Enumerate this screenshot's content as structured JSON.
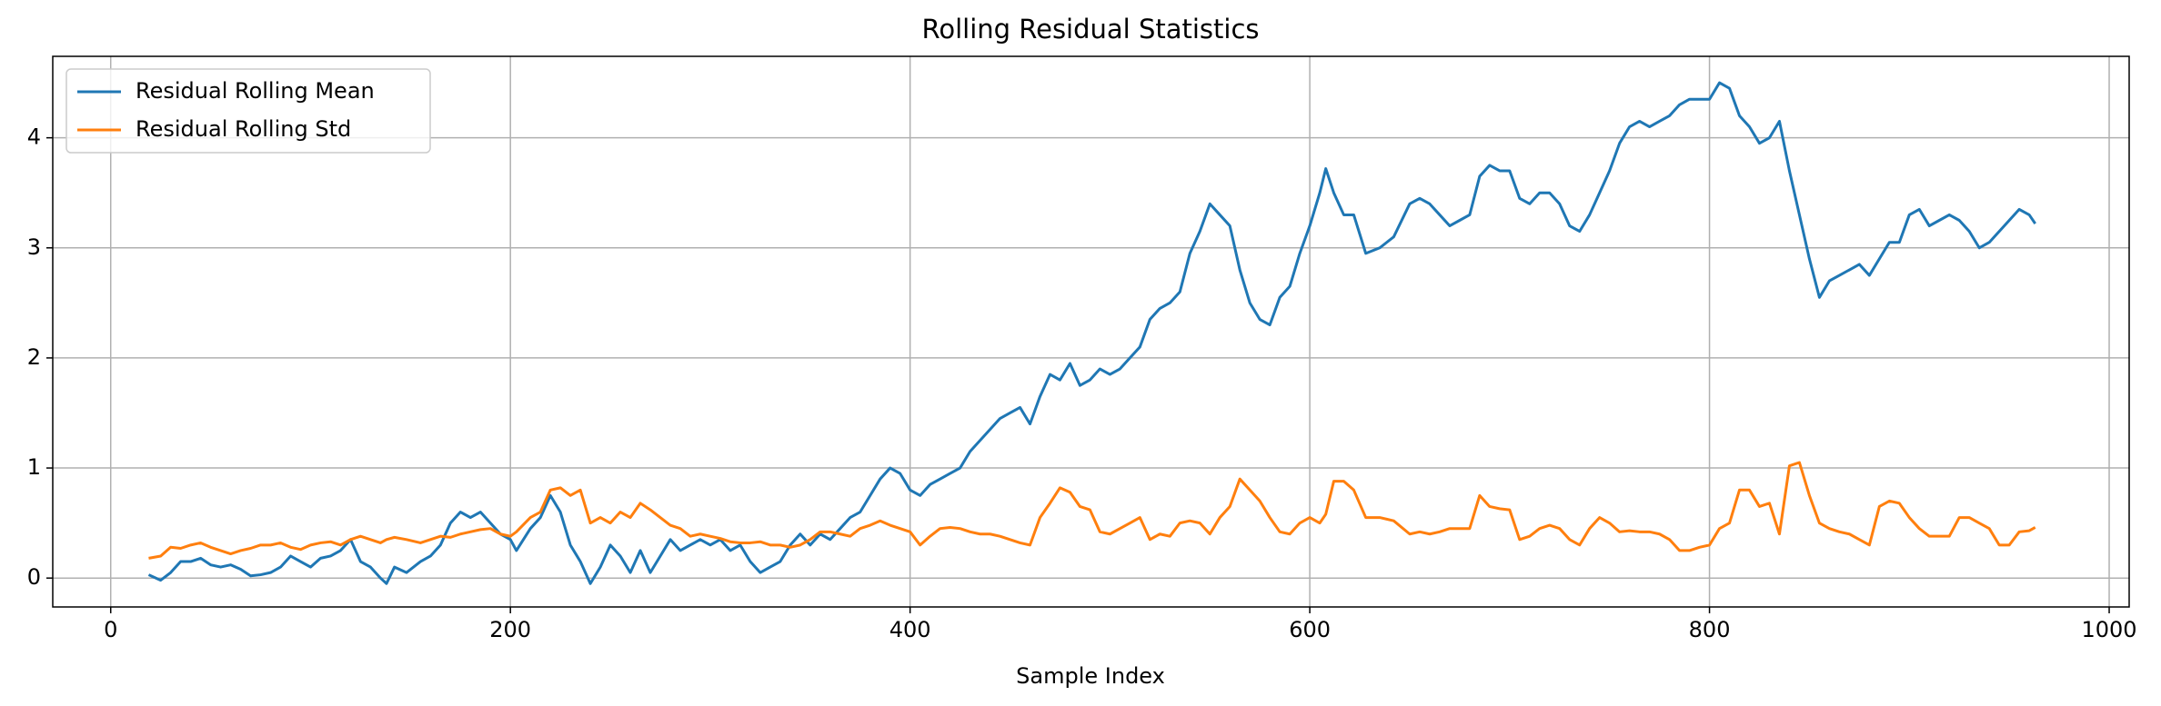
{
  "chart_data": {
    "type": "line",
    "title": "Rolling Residual Statistics",
    "x_label": "Sample Index",
    "x": [
      19,
      25,
      30,
      35,
      40,
      45,
      50,
      55,
      60,
      65,
      70,
      75,
      80,
      85,
      90,
      95,
      100,
      105,
      110,
      115,
      120,
      125,
      130,
      135,
      138,
      142,
      148,
      155,
      160,
      165,
      170,
      175,
      180,
      185,
      190,
      195,
      200,
      203,
      210,
      215,
      220,
      225,
      230,
      235,
      240,
      245,
      250,
      255,
      260,
      265,
      270,
      275,
      280,
      285,
      290,
      295,
      300,
      305,
      310,
      315,
      320,
      325,
      330,
      335,
      340,
      345,
      350,
      355,
      360,
      365,
      370,
      375,
      380,
      385,
      390,
      395,
      400,
      405,
      410,
      415,
      420,
      425,
      430,
      435,
      440,
      445,
      450,
      455,
      460,
      465,
      470,
      475,
      480,
      485,
      490,
      495,
      500,
      505,
      510,
      515,
      520,
      525,
      530,
      535,
      540,
      545,
      550,
      555,
      560,
      565,
      570,
      575,
      580,
      585,
      590,
      595,
      600,
      605,
      608,
      612,
      617,
      622,
      628,
      635,
      642,
      650,
      655,
      660,
      665,
      670,
      675,
      680,
      685,
      690,
      695,
      700,
      705,
      710,
      715,
      720,
      725,
      730,
      735,
      740,
      745,
      750,
      755,
      760,
      765,
      770,
      775,
      780,
      785,
      790,
      795,
      800,
      805,
      810,
      815,
      820,
      825,
      830,
      835,
      840,
      845,
      850,
      855,
      860,
      865,
      870,
      875,
      880,
      885,
      890,
      895,
      900,
      905,
      910,
      915,
      920,
      925,
      930,
      935,
      940,
      945,
      950,
      955,
      960,
      963
    ],
    "series": [
      {
        "name": "Residual Rolling Mean",
        "color": "#1f77b4",
        "values": [
          0.03,
          -0.02,
          0.05,
          0.15,
          0.15,
          0.18,
          0.12,
          0.1,
          0.12,
          0.08,
          0.02,
          0.03,
          0.05,
          0.1,
          0.2,
          0.15,
          0.1,
          0.18,
          0.2,
          0.25,
          0.35,
          0.15,
          0.1,
          0.0,
          -0.05,
          0.1,
          0.05,
          0.15,
          0.2,
          0.3,
          0.5,
          0.6,
          0.55,
          0.6,
          0.5,
          0.4,
          0.35,
          0.25,
          0.45,
          0.55,
          0.75,
          0.6,
          0.3,
          0.15,
          -0.05,
          0.1,
          0.3,
          0.2,
          0.05,
          0.25,
          0.05,
          0.2,
          0.35,
          0.25,
          0.3,
          0.35,
          0.3,
          0.35,
          0.25,
          0.3,
          0.15,
          0.05,
          0.1,
          0.15,
          0.3,
          0.4,
          0.3,
          0.4,
          0.35,
          0.45,
          0.55,
          0.6,
          0.75,
          0.9,
          1.0,
          0.95,
          0.8,
          0.75,
          0.85,
          0.9,
          0.95,
          1.0,
          1.15,
          1.25,
          1.35,
          1.45,
          1.5,
          1.55,
          1.4,
          1.65,
          1.85,
          1.8,
          1.95,
          1.75,
          1.8,
          1.9,
          1.85,
          1.9,
          2.0,
          2.1,
          2.35,
          2.45,
          2.5,
          2.6,
          2.95,
          3.15,
          3.4,
          3.3,
          3.2,
          2.8,
          2.5,
          2.35,
          2.3,
          2.55,
          2.65,
          2.95,
          3.2,
          3.5,
          3.72,
          3.5,
          3.3,
          3.3,
          2.95,
          3.0,
          3.1,
          3.4,
          3.45,
          3.4,
          3.3,
          3.2,
          3.25,
          3.3,
          3.65,
          3.75,
          3.7,
          3.7,
          3.45,
          3.4,
          3.5,
          3.5,
          3.4,
          3.2,
          3.15,
          3.3,
          3.5,
          3.7,
          3.95,
          4.1,
          4.15,
          4.1,
          4.15,
          4.2,
          4.3,
          4.35,
          4.35,
          4.35,
          4.5,
          4.45,
          4.2,
          4.1,
          3.95,
          4.0,
          4.15,
          3.7,
          3.3,
          2.9,
          2.55,
          2.7,
          2.75,
          2.8,
          2.85,
          2.75,
          2.9,
          3.05,
          3.05,
          3.3,
          3.35,
          3.2,
          3.25,
          3.3,
          3.25,
          3.15,
          3.0,
          3.05,
          3.15,
          3.25,
          3.35,
          3.3,
          3.22
        ]
      },
      {
        "name": "Residual Rolling Std",
        "color": "#ff7f0e",
        "values": [
          0.18,
          0.2,
          0.28,
          0.27,
          0.3,
          0.32,
          0.28,
          0.25,
          0.22,
          0.25,
          0.27,
          0.3,
          0.3,
          0.32,
          0.28,
          0.26,
          0.3,
          0.32,
          0.33,
          0.3,
          0.35,
          0.38,
          0.35,
          0.32,
          0.35,
          0.37,
          0.35,
          0.32,
          0.35,
          0.38,
          0.37,
          0.4,
          0.42,
          0.44,
          0.45,
          0.4,
          0.38,
          0.42,
          0.55,
          0.6,
          0.8,
          0.82,
          0.75,
          0.8,
          0.5,
          0.55,
          0.5,
          0.6,
          0.55,
          0.68,
          0.62,
          0.55,
          0.48,
          0.45,
          0.38,
          0.4,
          0.38,
          0.36,
          0.33,
          0.32,
          0.32,
          0.33,
          0.3,
          0.3,
          0.28,
          0.3,
          0.35,
          0.42,
          0.42,
          0.4,
          0.38,
          0.45,
          0.48,
          0.52,
          0.48,
          0.45,
          0.42,
          0.3,
          0.38,
          0.45,
          0.46,
          0.45,
          0.42,
          0.4,
          0.4,
          0.38,
          0.35,
          0.32,
          0.3,
          0.55,
          0.68,
          0.82,
          0.78,
          0.65,
          0.62,
          0.42,
          0.4,
          0.45,
          0.5,
          0.55,
          0.35,
          0.4,
          0.38,
          0.5,
          0.52,
          0.5,
          0.4,
          0.55,
          0.65,
          0.9,
          0.8,
          0.7,
          0.55,
          0.42,
          0.4,
          0.5,
          0.55,
          0.5,
          0.58,
          0.88,
          0.88,
          0.8,
          0.55,
          0.55,
          0.52,
          0.4,
          0.42,
          0.4,
          0.42,
          0.45,
          0.45,
          0.45,
          0.75,
          0.65,
          0.63,
          0.62,
          0.35,
          0.38,
          0.45,
          0.48,
          0.45,
          0.35,
          0.3,
          0.45,
          0.55,
          0.5,
          0.42,
          0.43,
          0.42,
          0.42,
          0.4,
          0.35,
          0.25,
          0.25,
          0.28,
          0.3,
          0.45,
          0.5,
          0.8,
          0.8,
          0.65,
          0.68,
          0.4,
          1.02,
          1.05,
          0.75,
          0.5,
          0.45,
          0.42,
          0.4,
          0.35,
          0.3,
          0.65,
          0.7,
          0.68,
          0.55,
          0.45,
          0.38,
          0.38,
          0.38,
          0.55,
          0.55,
          0.5,
          0.45,
          0.3,
          0.3,
          0.42,
          0.43,
          0.46
        ]
      }
    ],
    "xlim": [
      -29,
      1010
    ],
    "ylim": [
      -0.2625,
      4.74
    ],
    "xticks": [
      0,
      200,
      400,
      600,
      800,
      1000
    ],
    "yticks": [
      0,
      1,
      2,
      3,
      4
    ],
    "grid": true,
    "legend": "upper left"
  }
}
